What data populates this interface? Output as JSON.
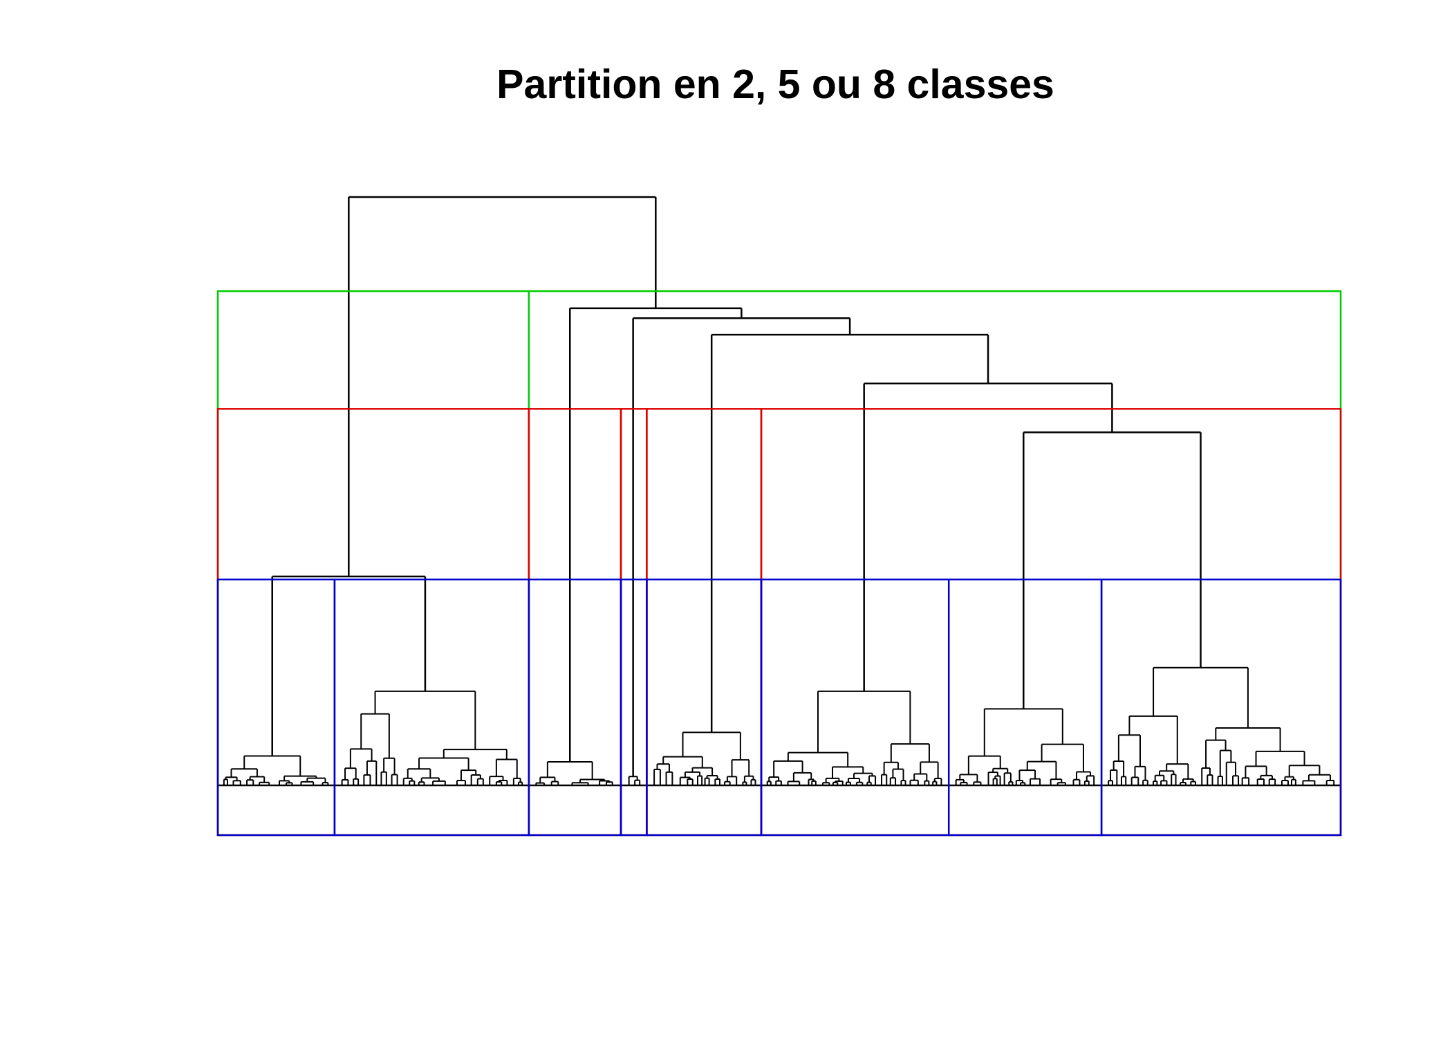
{
  "chart_data": {
    "type": "dendrogram",
    "title": "Partition en 2, 5 ou 8 classes",
    "xlabel": "",
    "ylabel": "",
    "axes_shown": false,
    "grid": false,
    "leaf_labels_shown": false,
    "colors": {
      "tree": "#000000",
      "partition_2": "#00cc00",
      "partition_5": "#dd0000",
      "partition_8": "#0000cc"
    },
    "partitions": [
      {
        "name": "2 classes",
        "color": "#00cc00",
        "cut_height": 0.84,
        "cluster_sizes": [
          0.277,
          0.723
        ]
      },
      {
        "name": "5 classes",
        "color": "#dd0000",
        "cut_height": 0.64,
        "cluster_sizes": [
          0.277,
          0.082,
          0.023,
          0.102,
          0.516
        ]
      },
      {
        "name": "8 classes",
        "color": "#0000cc",
        "cut_height": 0.35,
        "cluster_sizes": [
          0.104,
          0.173,
          0.082,
          0.023,
          0.102,
          0.167,
          0.136,
          0.213
        ]
      }
    ],
    "merges": [
      {
        "id": "m_c1",
        "height": 0.055,
        "left": [
          0.015,
          0.082
        ],
        "right": [
          0.075,
          0.103
        ]
      },
      {
        "id": "m_c2",
        "height": 0.16,
        "left": [
          0.104,
          0.15
        ],
        "right": [
          0.18,
          0.27
        ]
      },
      {
        "id": "m_c12",
        "height": 0.355,
        "left": [
          0.043,
          0.1
        ],
        "right": [
          0.15,
          0.235
        ]
      },
      {
        "id": "m_c3",
        "height": 0.04,
        "left": [
          0.28,
          0.32
        ],
        "right": [
          0.33,
          0.355
        ]
      },
      {
        "id": "m_c4",
        "height": 0.015,
        "left": [
          0.36,
          0.37
        ],
        "right": [
          0.373,
          0.383
        ]
      },
      {
        "id": "m_c5",
        "height": 0.09,
        "left": [
          0.395,
          0.44
        ],
        "right": [
          0.435,
          0.475
        ]
      },
      {
        "id": "m_c6",
        "height": 0.14,
        "left": [
          0.505,
          0.585
        ],
        "right": [
          0.58,
          0.63
        ]
      },
      {
        "id": "m_c6b",
        "height": 0.14,
        "left": [
          0.535,
          0.585
        ],
        "right": [
          0.53,
          0.56
        ]
      },
      {
        "id": "m_c67",
        "height": 0.41,
        "left": [
          0.505,
          0.58
        ],
        "right": [
          0.655,
          0.73
        ]
      },
      {
        "id": "m_c8",
        "height": 0.2,
        "left": [
          0.815,
          0.865
        ],
        "right": [
          0.89,
          0.985
        ]
      },
      {
        "id": "m_c78",
        "height": 0.6,
        "left": [
          0.716,
          0.727
        ],
        "right": [
          0.853,
          0.932
        ]
      },
      {
        "id": "m_c678",
        "height": 0.683,
        "left": [
          0.652,
          0.661
        ],
        "right": [
          0.779,
          0.794
        ]
      },
      {
        "id": "m_c5_678",
        "height": 0.766,
        "left": [
          0.419,
          0.456
        ],
        "right": [
          0.722,
          0.955
        ]
      },
      {
        "id": "m_c4_rest",
        "height": 0.794,
        "left": [
          0.372,
          0.377
        ],
        "right": [
          0.625,
          0.7
        ]
      },
      {
        "id": "m_c3_rest",
        "height": 0.811,
        "left": [
          0.307,
          0.316
        ],
        "right": [
          0.5,
          0.511
        ]
      },
      {
        "id": "root",
        "height": 1.0,
        "left": [
          0.109,
          0.114
        ],
        "right": [
          0.38,
          0.403
        ]
      }
    ]
  }
}
